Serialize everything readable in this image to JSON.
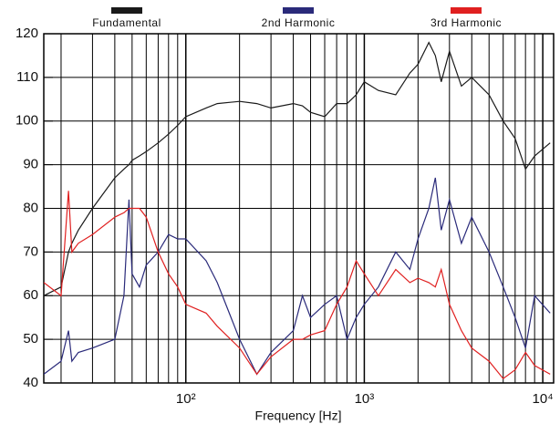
{
  "chart_data": {
    "type": "line",
    "xlabel": "Frequency  [Hz]",
    "log_x": true,
    "grid": true,
    "legend": "top",
    "xlim": [
      16,
      11500
    ],
    "xticks": [
      {
        "value": 100,
        "label": "10²"
      },
      {
        "value": 1000,
        "label": "10³"
      },
      {
        "value": 10000,
        "label": "10⁴"
      }
    ],
    "x_minor_ticks": [
      20,
      30,
      40,
      50,
      60,
      70,
      80,
      90,
      200,
      300,
      400,
      500,
      600,
      700,
      800,
      900,
      2000,
      3000,
      4000,
      5000,
      6000,
      7000,
      8000,
      9000
    ],
    "ylim": [
      40,
      120
    ],
    "yticks": [
      40,
      50,
      60,
      70,
      80,
      90,
      100,
      110,
      120
    ],
    "x": [
      16,
      20,
      22,
      23,
      25,
      30,
      40,
      45,
      48,
      50,
      55,
      60,
      70,
      80,
      90,
      100,
      130,
      150,
      200,
      250,
      300,
      400,
      450,
      500,
      600,
      700,
      800,
      900,
      1000,
      1200,
      1500,
      1800,
      2000,
      2300,
      2500,
      2700,
      3000,
      3500,
      4000,
      5000,
      6000,
      7000,
      8000,
      9000,
      11000
    ],
    "series": [
      {
        "name": "Fundamental",
        "color": "#1a1a1a",
        "values": [
          60,
          62,
          70,
          72,
          75,
          80,
          87,
          89,
          90,
          91,
          92,
          93,
          95,
          97,
          99,
          101,
          103,
          104,
          104.5,
          104,
          103,
          104,
          103.5,
          102,
          101,
          104,
          104,
          106,
          109,
          107,
          106,
          111,
          113,
          118,
          115,
          109,
          116,
          108,
          110,
          106,
          100,
          96,
          89,
          92,
          95
        ]
      },
      {
        "name": "2nd Harmonic",
        "color": "#2a2a7a",
        "values": [
          42,
          45,
          52,
          45,
          47,
          48,
          50,
          60,
          82,
          65,
          62,
          67,
          70,
          74,
          73,
          73,
          68,
          63,
          50,
          42,
          47,
          52,
          60,
          55,
          58,
          60,
          50,
          55,
          58,
          62,
          70,
          66,
          73,
          80,
          87,
          75,
          82,
          72,
          78,
          70,
          62,
          55,
          48,
          60,
          56
        ]
      },
      {
        "name": "3rd Harmonic",
        "color": "#e02020",
        "values": [
          63,
          60,
          84,
          70,
          72,
          74,
          78,
          79,
          80,
          80,
          80,
          78,
          70,
          65,
          62,
          58,
          56,
          53,
          48,
          42,
          46,
          50,
          50,
          51,
          52,
          58,
          62,
          68,
          65,
          60,
          66,
          63,
          64,
          63,
          62,
          66,
          58,
          52,
          48,
          45,
          41,
          43,
          47,
          44,
          42
        ]
      }
    ]
  }
}
